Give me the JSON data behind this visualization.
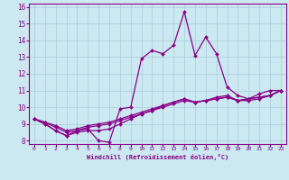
{
  "xlabel": "Windchill (Refroidissement éolien,°C)",
  "background_color": "#cce8f0",
  "grid_color": "#aaccdd",
  "line_color": "#880088",
  "spine_color": "#880088",
  "xlim": [
    -0.5,
    23.5
  ],
  "ylim": [
    7.8,
    16.2
  ],
  "yticks": [
    8,
    9,
    10,
    11,
    12,
    13,
    14,
    15,
    16
  ],
  "xticks": [
    0,
    1,
    2,
    3,
    4,
    5,
    6,
    7,
    8,
    9,
    10,
    11,
    12,
    13,
    14,
    15,
    16,
    17,
    18,
    19,
    20,
    21,
    22,
    23
  ],
  "series": [
    [
      9.3,
      9.0,
      8.6,
      8.3,
      8.6,
      8.7,
      8.0,
      7.9,
      9.9,
      10.0,
      12.9,
      13.4,
      13.2,
      13.7,
      15.7,
      13.1,
      14.2,
      13.2,
      11.2,
      10.7,
      10.5,
      10.8,
      11.0,
      11.0
    ],
    [
      9.3,
      9.0,
      8.6,
      8.3,
      8.5,
      8.6,
      8.6,
      8.7,
      9.0,
      9.3,
      9.6,
      9.8,
      10.1,
      10.3,
      10.5,
      10.3,
      10.4,
      10.6,
      10.7,
      10.4,
      10.4,
      10.5,
      10.7,
      11.0
    ],
    [
      9.3,
      9.1,
      8.8,
      8.5,
      8.6,
      8.8,
      8.9,
      9.0,
      9.2,
      9.4,
      9.6,
      9.8,
      10.0,
      10.2,
      10.4,
      10.3,
      10.4,
      10.5,
      10.6,
      10.4,
      10.5,
      10.6,
      10.7,
      11.0
    ],
    [
      9.3,
      9.1,
      8.9,
      8.6,
      8.7,
      8.9,
      9.0,
      9.1,
      9.3,
      9.5,
      9.7,
      9.9,
      10.1,
      10.3,
      10.5,
      10.3,
      10.4,
      10.5,
      10.6,
      10.4,
      10.5,
      10.6,
      10.7,
      11.0
    ]
  ]
}
